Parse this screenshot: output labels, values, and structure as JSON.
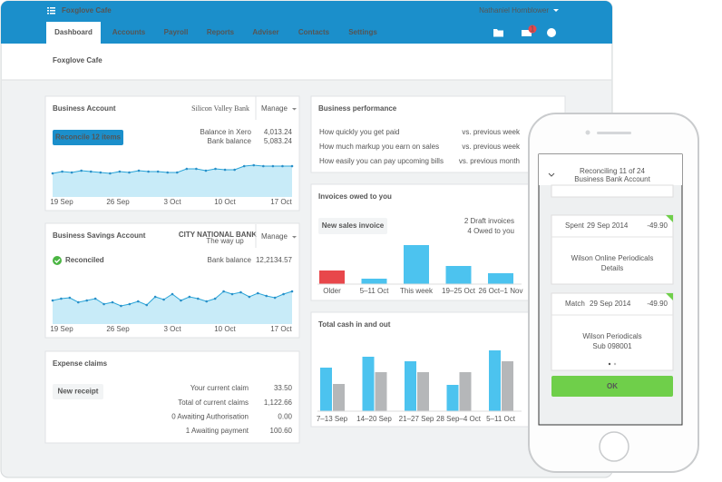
{
  "app": {
    "title": "Foxglove Cafe",
    "user": "Nathaniel Hornblower",
    "nav": [
      "Dashboard",
      "Accounts",
      "Payroll",
      "Reports",
      "Adviser",
      "Contacts",
      "Settings"
    ],
    "badge": "1"
  },
  "header": {
    "title": "Foxglove Cafe"
  },
  "business_account": {
    "title": "Business Account",
    "bank": "Silicon Valley Bank",
    "manage": "Manage",
    "button": "Reconcile 12 items",
    "rows": [
      [
        "Balance in Xero",
        "4,013.24"
      ],
      [
        "Bank balance",
        "5,083.24"
      ]
    ],
    "chart": {
      "values": [
        26,
        28,
        27,
        29,
        28,
        27,
        26,
        28,
        27,
        29,
        28,
        28,
        27,
        27,
        31,
        31,
        29,
        31,
        30,
        30,
        34,
        35,
        34,
        34,
        34,
        34
      ],
      "labels": [
        "19 Sep",
        "26 Sep",
        "3 Oct",
        "10 Oct",
        "17 Oct"
      ]
    }
  },
  "savings_account": {
    "title": "Business Savings Account",
    "bank": "CITY NATIONAL BANK",
    "tagline": "The way up",
    "manage": "Manage",
    "status": "Reconciled",
    "rows": [
      [
        "Bank balance",
        "12,2134.57"
      ]
    ],
    "chart": {
      "values": [
        26,
        28,
        29,
        24,
        26,
        28,
        22,
        24,
        20,
        22,
        25,
        21,
        30,
        27,
        33,
        26,
        30,
        28,
        25,
        28,
        36,
        33,
        35,
        30,
        34,
        31,
        29,
        33,
        36
      ],
      "labels": [
        "19 Sep",
        "26 Sep",
        "3 Oct",
        "10 Oct",
        "17 Oct"
      ]
    }
  },
  "expense_claims": {
    "title": "Expense claims",
    "button": "New receipt",
    "rows": [
      [
        "Your current claim",
        "33.50"
      ],
      [
        "Total of current claims",
        "1,122.66"
      ],
      [
        "0 Awaiting Authorisation",
        "0.00"
      ],
      [
        "1 Awaiting payment",
        "100.60"
      ]
    ]
  },
  "performance": {
    "title": "Business performance",
    "rows": [
      [
        "How quickly you get paid",
        "vs. previous week"
      ],
      [
        "How much markup you earn on sales",
        "vs. previous week"
      ],
      [
        "How easily you can pay upcoming bills",
        "vs. previous month"
      ]
    ]
  },
  "invoices": {
    "title": "Invoices owed to you",
    "button": "New sales invoice",
    "notes": [
      "2 Draft invoices",
      "4 Owed to you"
    ],
    "chart": {
      "categories": [
        "Older",
        "5–11 Oct",
        "This week",
        "19–25 Oct",
        "26 Oct–1 Nov"
      ],
      "values": [
        15,
        6,
        43,
        20,
        12
      ],
      "colors": [
        "#e8474b",
        "#4cc3ef",
        "#4cc3ef",
        "#4cc3ef",
        "#4cc3ef"
      ]
    }
  },
  "cash": {
    "title": "Total cash in and out",
    "chart": {
      "categories": [
        "7–13 Sep",
        "14–20 Sep",
        "21–27 Sep",
        "28 Sep–4 Oct",
        "5–11 Oct"
      ],
      "series": [
        {
          "color": "#4cc3ef",
          "values": [
            48,
            60,
            55,
            29,
            67
          ]
        },
        {
          "color": "#b5b7b9",
          "values": [
            30,
            43,
            43,
            43,
            55
          ]
        }
      ]
    }
  },
  "phone": {
    "header": "Reconciling 11 of 24",
    "subheader": "Business Bank Account",
    "button": "OK",
    "cards": [
      {
        "type": "Spent",
        "date": "29 Sep 2014",
        "amount": "-49.90",
        "payee": "Wilson Online Periodicals",
        "detail": "Details"
      },
      {
        "type": "Match",
        "date": "29 Sep 2014",
        "amount": "-49.90",
        "payee": "Wilson Periodicals",
        "detail": "Sub 098001"
      }
    ]
  }
}
